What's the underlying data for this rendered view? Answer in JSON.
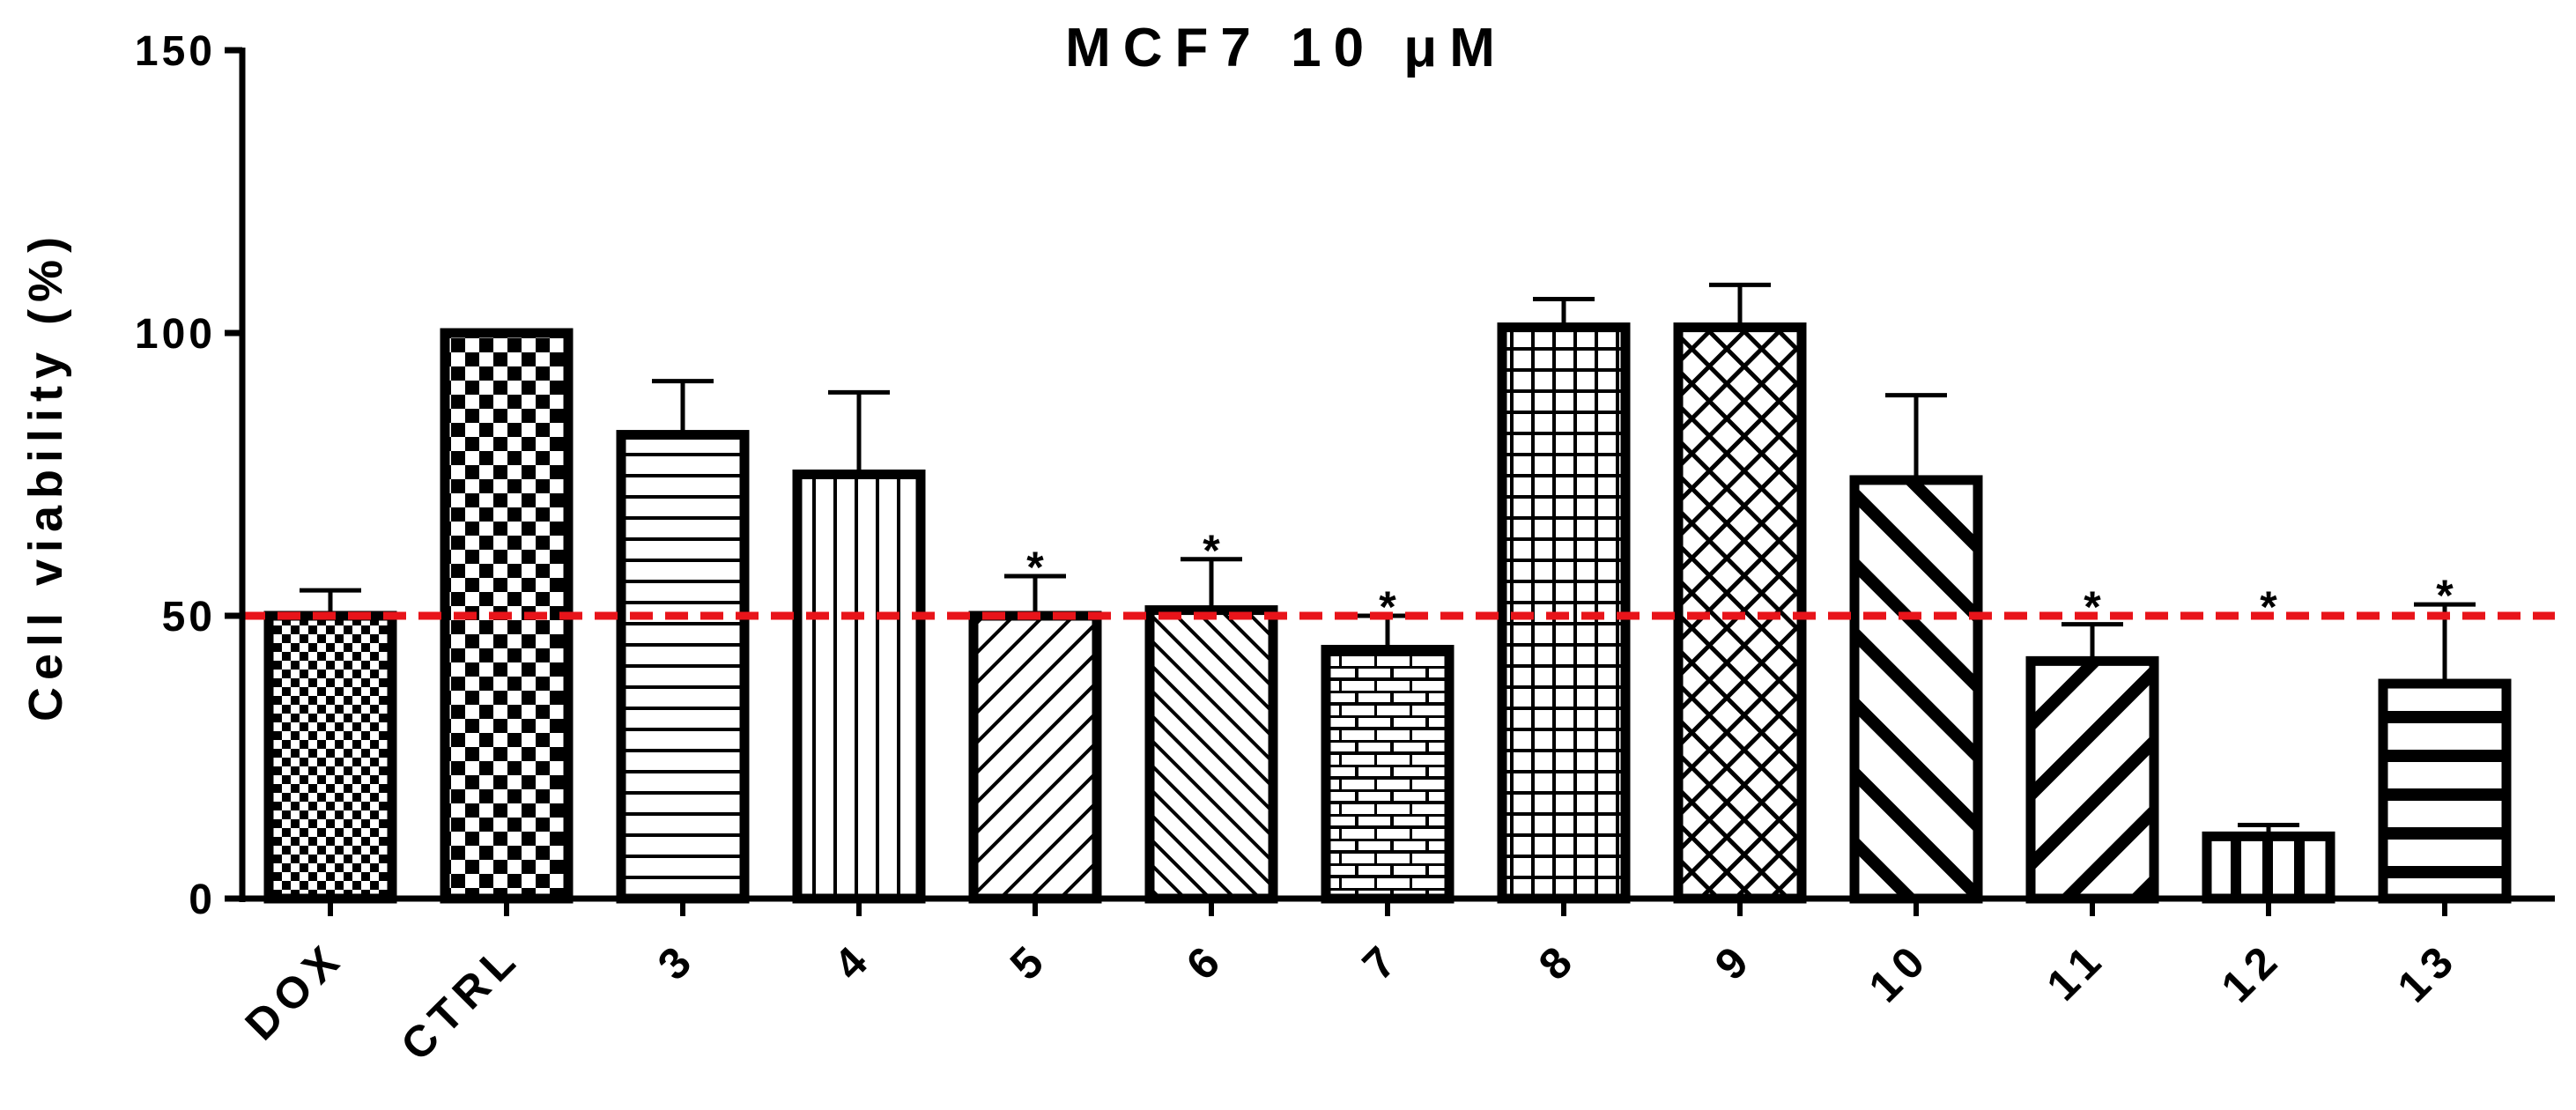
{
  "chart_data": {
    "type": "bar",
    "title": "MCF7 10 μM",
    "xlabel": "",
    "ylabel": "Cell viability (%)",
    "ylim": [
      0,
      150
    ],
    "yticks": [
      "0",
      "50",
      "100",
      "150"
    ],
    "categories": [
      "DOX",
      "CTRL",
      "3",
      "4",
      "5",
      "6",
      "7",
      "8",
      "9",
      "10",
      "11",
      "12",
      "13"
    ],
    "values": [
      50,
      100,
      82,
      75,
      50,
      51,
      44,
      101,
      101,
      74,
      42,
      11,
      38
    ],
    "error_upper": [
      54.5,
      100,
      91.5,
      89.5,
      57,
      60,
      50,
      106,
      108.5,
      89,
      48.5,
      13,
      52
    ],
    "significance": [
      "",
      "",
      "",
      "",
      "*",
      "*",
      "*",
      "",
      "",
      "",
      "*",
      "*",
      "*"
    ],
    "patterns": [
      "checker-fine",
      "checker-large",
      "horizontal",
      "vertical",
      "diagonal-up",
      "diagonal-down",
      "brick",
      "grid",
      "crosshatch",
      "diagonal-down-thick",
      "diagonal-up-thick",
      "vertical-thick",
      "horizontal-thick"
    ],
    "reference_line": {
      "value": 50,
      "color": "#e8141a",
      "style": "dashed"
    },
    "grid": false,
    "legend": "none"
  }
}
